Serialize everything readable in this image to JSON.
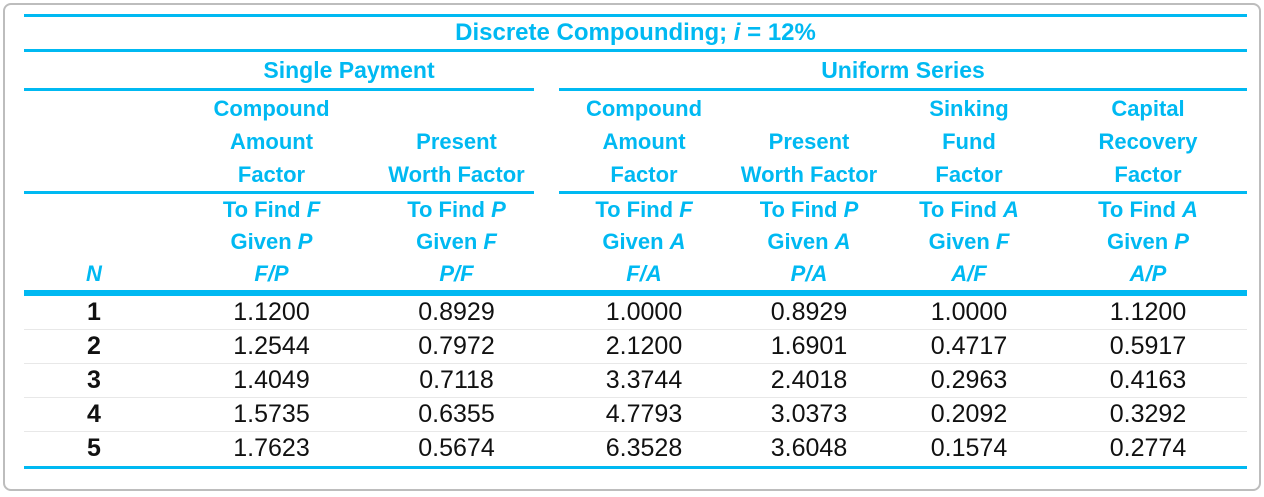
{
  "colors": {
    "accent": "#00b9f2",
    "data_text": "#111111",
    "row_divider": "#e8e8e8",
    "frame_border": "#bdbdbd",
    "background": "#ffffff"
  },
  "title": {
    "prefix": "Discrete Compounding; ",
    "var": "i",
    "suffix": " = 12%"
  },
  "groups": {
    "single_payment": "Single Payment",
    "uniform_series": "Uniform Series"
  },
  "table": {
    "n_header": "N",
    "factor_columns": [
      {
        "title_lines": [
          "Compound",
          "Amount",
          "Factor"
        ],
        "find_prefix": "To Find ",
        "find_var": "F",
        "given_prefix": "Given ",
        "given_var": "P",
        "symbol": "F/P"
      },
      {
        "title_lines": [
          "",
          "Present",
          "Worth Factor"
        ],
        "find_prefix": "To Find ",
        "find_var": "P",
        "given_prefix": "Given ",
        "given_var": "F",
        "symbol": "P/F"
      },
      {
        "title_lines": [
          "Compound",
          "Amount",
          "Factor"
        ],
        "find_prefix": "To Find ",
        "find_var": "F",
        "given_prefix": "Given ",
        "given_var": "A",
        "symbol": "F/A"
      },
      {
        "title_lines": [
          "",
          "Present",
          "Worth Factor"
        ],
        "find_prefix": "To Find ",
        "find_var": "P",
        "given_prefix": "Given ",
        "given_var": "A",
        "symbol": "P/A"
      },
      {
        "title_lines": [
          "Sinking",
          "Fund",
          "Factor"
        ],
        "find_prefix": "To Find ",
        "find_var": "A",
        "given_prefix": "Given ",
        "given_var": "F",
        "symbol": "A/F"
      },
      {
        "title_lines": [
          "Capital",
          "Recovery",
          "Factor"
        ],
        "find_prefix": "To Find ",
        "find_var": "A",
        "given_prefix": "Given ",
        "given_var": "P",
        "symbol": "A/P"
      }
    ],
    "rows": [
      {
        "n": "1",
        "fp": "1.1200",
        "pf": "0.8929",
        "fa": "1.0000",
        "pa": "0.8929",
        "af": "1.0000",
        "ap": "1.1200"
      },
      {
        "n": "2",
        "fp": "1.2544",
        "pf": "0.7972",
        "fa": "2.1200",
        "pa": "1.6901",
        "af": "0.4717",
        "ap": "0.5917"
      },
      {
        "n": "3",
        "fp": "1.4049",
        "pf": "0.7118",
        "fa": "3.3744",
        "pa": "2.4018",
        "af": "0.2963",
        "ap": "0.4163"
      },
      {
        "n": "4",
        "fp": "1.5735",
        "pf": "0.6355",
        "fa": "4.7793",
        "pa": "3.0373",
        "af": "0.2092",
        "ap": "0.3292"
      },
      {
        "n": "5",
        "fp": "1.7623",
        "pf": "0.5674",
        "fa": "6.3528",
        "pa": "3.6048",
        "af": "0.1574",
        "ap": "0.2774"
      }
    ]
  },
  "chart_data": {
    "type": "table",
    "title": "Discrete Compounding; i = 12%",
    "column_groups": [
      "Single Payment",
      "Uniform Series"
    ],
    "columns": [
      "N",
      "F/P",
      "P/F",
      "F/A",
      "P/A",
      "A/F",
      "A/P"
    ],
    "rows": [
      [
        1,
        1.12,
        0.8929,
        1.0,
        0.8929,
        1.0,
        1.12
      ],
      [
        2,
        1.2544,
        0.7972,
        2.12,
        1.6901,
        0.4717,
        0.5917
      ],
      [
        3,
        1.4049,
        0.7118,
        3.3744,
        2.4018,
        0.2963,
        0.4163
      ],
      [
        4,
        1.5735,
        0.6355,
        4.7793,
        3.0373,
        0.2092,
        0.3292
      ],
      [
        5,
        1.7623,
        0.5674,
        6.3528,
        3.6048,
        0.1574,
        0.2774
      ]
    ]
  }
}
